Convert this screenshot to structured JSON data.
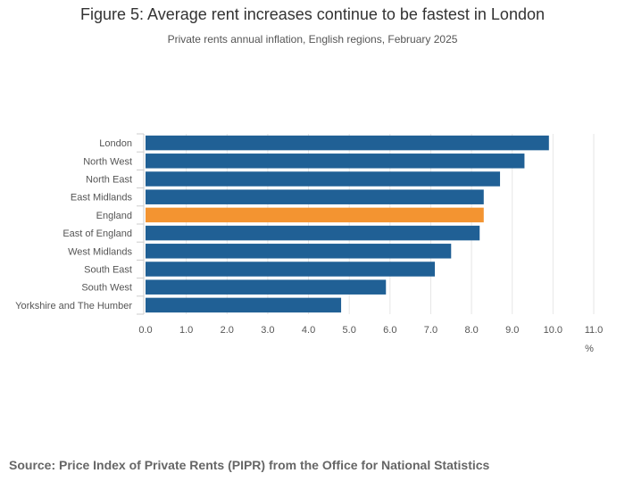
{
  "title": "Figure 5: Average rent increases continue to be fastest in London",
  "subtitle": "Private rents annual inflation, English regions, February 2025",
  "source": "Source: Price Index of Private Rents (PIPR) from the Office for National Statistics",
  "colors": {
    "bar": "#206095",
    "highlight": "#F39431",
    "grid": "#e6e6e6",
    "axis": "#cccccc",
    "text": "#555555"
  },
  "chart_data": {
    "type": "bar",
    "orientation": "horizontal",
    "categories": [
      "London",
      "North West",
      "North East",
      "East Midlands",
      "England",
      "East of England",
      "West Midlands",
      "South East",
      "South West",
      "Yorkshire and The Humber"
    ],
    "values": [
      9.9,
      9.3,
      8.7,
      8.3,
      8.3,
      8.2,
      7.5,
      7.1,
      5.9,
      4.8
    ],
    "highlight": "England",
    "xlim": [
      0,
      11
    ],
    "xticks": [
      "0.0",
      "1.0",
      "2.0",
      "3.0",
      "4.0",
      "5.0",
      "6.0",
      "7.0",
      "8.0",
      "9.0",
      "10.0",
      "11.0"
    ],
    "xlabel": "%",
    "ylabel": "",
    "grid": true
  }
}
